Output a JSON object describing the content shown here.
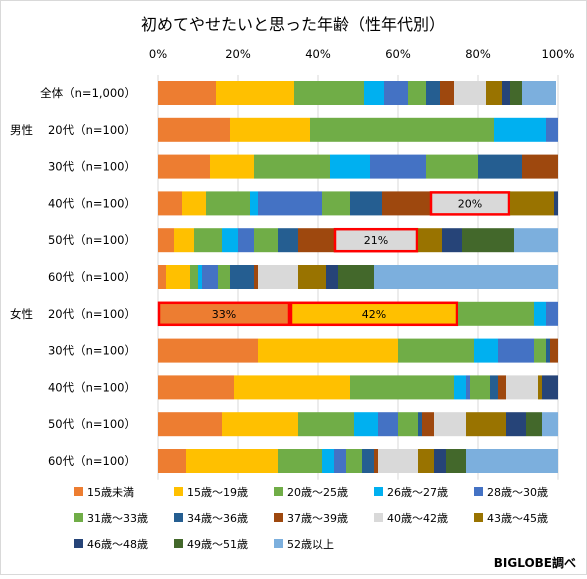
{
  "chart_data": {
    "type": "bar",
    "orientation": "horizontal",
    "stacked": true,
    "normalized": true,
    "title": "初めてやせたいと思った年齢（性年代別）",
    "xlim": [
      0,
      100
    ],
    "x_ticks": [
      "0%",
      "20%",
      "40%",
      "60%",
      "80%",
      "100%"
    ],
    "grid": true,
    "legend_position": "bottom",
    "credit": "BIGLOBE調べ",
    "groups": [
      {
        "name": "",
        "row_indices": [
          0
        ]
      },
      {
        "name": "男性",
        "row_indices": [
          1,
          2,
          3,
          4,
          5
        ]
      },
      {
        "name": "女性",
        "row_indices": [
          6,
          7,
          8,
          9,
          10
        ]
      }
    ],
    "categories": [
      "全体（n=1,000）",
      "20代（n=100）",
      "30代（n=100）",
      "40代（n=100）",
      "50代（n=100）",
      "60代（n=100）",
      "20代（n=100）",
      "30代（n=100）",
      "40代（n=100）",
      "50代（n=100）",
      "60代（n=100）"
    ],
    "series": [
      {
        "name": "15歳未満",
        "color": "#ED7D31",
        "values": [
          14.5,
          18,
          13,
          6,
          4,
          2,
          33,
          25,
          19,
          16,
          7
        ]
      },
      {
        "name": "15歳～19歳",
        "color": "#FFC000",
        "values": [
          19.5,
          20,
          11,
          6,
          5,
          6,
          42,
          35,
          29,
          19,
          23
        ]
      },
      {
        "name": "20歳～25歳",
        "color": "#70AD47",
        "values": [
          17.5,
          46,
          19,
          11,
          7,
          2,
          19,
          19,
          26,
          14,
          11
        ]
      },
      {
        "name": "26歳～27歳",
        "color": "#00B0F0",
        "values": [
          5,
          13,
          10,
          2,
          4,
          1,
          3,
          6,
          3,
          6,
          3
        ]
      },
      {
        "name": "28歳～30歳",
        "color": "#4472C4",
        "values": [
          6,
          3,
          14,
          16,
          4,
          4,
          3,
          9,
          1,
          5,
          3
        ]
      },
      {
        "name": "31歳～33歳",
        "color": "#70AD47",
        "values": [
          4.5,
          0,
          13,
          7,
          6,
          3,
          0,
          3,
          5,
          5,
          4
        ]
      },
      {
        "name": "34歳～36歳",
        "color": "#255E91",
        "values": [
          3.5,
          0,
          11,
          8,
          5,
          6,
          0,
          1,
          2,
          1,
          3
        ]
      },
      {
        "name": "37歳～39歳",
        "color": "#9E480E",
        "values": [
          3.5,
          0,
          9,
          12,
          9,
          1,
          0,
          2,
          2,
          3,
          1
        ]
      },
      {
        "name": "40歳～42歳",
        "color": "#D9D9D9",
        "values": [
          8,
          0,
          0,
          20,
          21,
          10,
          0,
          0,
          8,
          8,
          10
        ]
      },
      {
        "name": "43歳～45歳",
        "color": "#997300",
        "values": [
          4,
          0,
          0,
          11,
          6,
          7,
          0,
          0,
          1,
          10,
          4
        ]
      },
      {
        "name": "46歳～48歳",
        "color": "#264478",
        "values": [
          2,
          0,
          0,
          1,
          5,
          3,
          0,
          0,
          4,
          5,
          3
        ]
      },
      {
        "name": "49歳～51歳",
        "color": "#43682B",
        "values": [
          3,
          0,
          0,
          0,
          13,
          9,
          0,
          0,
          0,
          4,
          5
        ]
      },
      {
        "name": "52歳以上",
        "color": "#7CAFDD",
        "values": [
          8.5,
          0,
          0,
          0,
          11,
          46,
          0,
          0,
          0,
          4,
          23
        ]
      }
    ],
    "highlighted": [
      {
        "row": 3,
        "series": "40歳～42歳",
        "label": "20%"
      },
      {
        "row": 4,
        "series": "40歳～42歳",
        "label": "21%"
      },
      {
        "row": 6,
        "series": "15歳未満",
        "label": "33%"
      },
      {
        "row": 6,
        "series": "15歳～19歳",
        "label": "42%"
      }
    ]
  }
}
